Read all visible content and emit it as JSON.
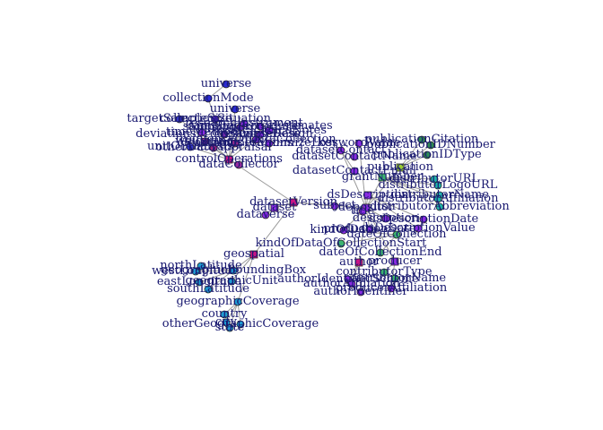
{
  "colors": {
    "label": "#191970",
    "edge": "#9a9a9a",
    "geo_cluster": "#1f9bd1",
    "collection_cluster": "#2b2bd6",
    "meta_cluster": "#8a2be2",
    "citation_cluster": "#2e8b57",
    "hub": "#c71585",
    "teal": "#20b2aa",
    "green": "#3cb371",
    "olive": "#9acd32"
  },
  "nodes": [
    {
      "id": "universe_top",
      "label": "universe",
      "color": "#2b2bd6"
    },
    {
      "id": "collectionMode",
      "label": "collectionMode",
      "color": "#2b2bd6"
    },
    {
      "id": "universe_2",
      "label": "universe",
      "color": "#2b2bd6"
    },
    {
      "id": "targetSampleSize",
      "label": "targetSampleSize",
      "color": "#3a3ad0"
    },
    {
      "id": "collectionSituation",
      "label": "collectionSituation",
      "color": "#5a2ad0"
    },
    {
      "id": "samplingProcedure",
      "label": "samplingProcedure",
      "color": "#6b2bc0"
    },
    {
      "id": "deviationsFromSampleDesign",
      "label": "deviationsFromSampleDesign",
      "color": "#7a2bb0"
    },
    {
      "id": "weighting",
      "label": "weighting",
      "color": "#8a2ba0"
    },
    {
      "id": "cleaningOperations",
      "label": "cleaningOperations",
      "color": "#9a2b90"
    },
    {
      "id": "otherDataAppraisal",
      "label": "otherDataAppraisal",
      "color": "#aa2b80"
    },
    {
      "id": "controlOperations",
      "label": "controlOperations",
      "color": "#c71585"
    },
    {
      "id": "dataCollector",
      "label": "dataCollector",
      "color": "#9a2ba0"
    },
    {
      "id": "unitOfAnalysis",
      "label": "unitOfAnalysis",
      "color": "#3a3ad0"
    },
    {
      "id": "frequencyOfDataCollection",
      "label": "frequencyOfDataCollection",
      "color": "#6b2bc0"
    },
    {
      "id": "researchInstrument",
      "label": "researchInstrument",
      "color": "#8a2be2"
    },
    {
      "id": "socialScienceNotes",
      "label": "socialScienceNotes",
      "color": "#8a2be2"
    },
    {
      "id": "samplingErrorEstimates",
      "label": "samplingErrorEstimates",
      "color": "#8a2be2"
    },
    {
      "id": "timeMethod",
      "label": "timeMethod",
      "color": "#8a2be2"
    },
    {
      "id": "actionsToMinimizeLoss",
      "label": "actionsToMinimizeLoss",
      "color": "#8a2be2"
    },
    {
      "id": "responseRate",
      "label": "responseRate",
      "color": "#8a2be2"
    },
    {
      "id": "datasetVersion",
      "label": "datasetVersion",
      "color": "#c71585"
    },
    {
      "id": "dataset",
      "label": "dataset",
      "color": "#8a2be2"
    },
    {
      "id": "dataverse",
      "label": "dataverse",
      "color": "#8a2be2"
    },
    {
      "id": "geospatial",
      "label": "geospatial",
      "color": "#c71585"
    },
    {
      "id": "northLatitude",
      "label": "northLatitude",
      "color": "#1f9bd1"
    },
    {
      "id": "geographicBoundingBox",
      "label": "geographicBoundingBox",
      "color": "#1f9bd1"
    },
    {
      "id": "westLongitude",
      "label": "westLongitude",
      "color": "#1f9bd1"
    },
    {
      "id": "eastLongitude",
      "label": "eastLongitude",
      "color": "#1f9bd1"
    },
    {
      "id": "geographicUnit",
      "label": "geographicUnit",
      "color": "#1f9bd1"
    },
    {
      "id": "southLatitude",
      "label": "southLatitude",
      "color": "#1f9bd1"
    },
    {
      "id": "geographicCoverage",
      "label": "geographicCoverage",
      "color": "#1f9bd1"
    },
    {
      "id": "country",
      "label": "country",
      "color": "#1f9bd1"
    },
    {
      "id": "otherGeographicCoverage",
      "label": "otherGeographicCoverage",
      "color": "#1f9bd1"
    },
    {
      "id": "state",
      "label": "state",
      "color": "#1f9bd1"
    },
    {
      "id": "city",
      "label": "city",
      "color": "#1f9bd1"
    },
    {
      "id": "publicationCitation",
      "label": "publicationCitation",
      "color": "#2e8b57"
    },
    {
      "id": "keywordValue",
      "label": "keywordValue",
      "color": "#8a2be2"
    },
    {
      "id": "publicationIDNumber",
      "label": "publicationIDNumber",
      "color": "#2e8b57"
    },
    {
      "id": "datasetContact",
      "label": "datasetContact",
      "color": "#8a2be2"
    },
    {
      "id": "publicationIDType",
      "label": "publicationIDType",
      "color": "#2e8b57"
    },
    {
      "id": "datasetContactName",
      "label": "datasetContactName",
      "color": "#8a2be2"
    },
    {
      "id": "publication",
      "label": "publication",
      "color": "#9acd32"
    },
    {
      "id": "datasetContactEmail",
      "label": "datasetContactEmail",
      "color": "#8a2be2"
    },
    {
      "id": "grantNumber",
      "label": "grantNumber",
      "color": "#3cb371"
    },
    {
      "id": "distributorURL",
      "label": "distributorURL",
      "color": "#20b2aa"
    },
    {
      "id": "distributorLogoURL",
      "label": "distributorLogoURL",
      "color": "#20b2aa"
    },
    {
      "id": "dsDescription",
      "label": "dsDescription",
      "color": "#8a2be2"
    },
    {
      "id": "distributorName",
      "label": "distributorName",
      "color": "#20b2aa"
    },
    {
      "id": "distributorAffiliation",
      "label": "distributorAffiliation",
      "color": "#20b2aa"
    },
    {
      "id": "distributorAbbreviation",
      "label": "distributorAbbreviation",
      "color": "#20b2aa"
    },
    {
      "id": "subject",
      "label": "subject",
      "color": "#8a2be2"
    },
    {
      "id": "depositor",
      "label": "depositor",
      "color": "#8a2be2"
    },
    {
      "id": "title",
      "label": "title",
      "color": "#8a2be2"
    },
    {
      "id": "dsDescriptionDate",
      "label": "dsDescriptionDate",
      "color": "#8a2be2"
    },
    {
      "id": "description",
      "label": "description",
      "color": "#8a2be2"
    },
    {
      "id": "productionDate",
      "label": "productionDate",
      "color": "#8a2be2"
    },
    {
      "id": "dsDescriptionValue",
      "label": "dsDescriptionValue",
      "color": "#8a2be2"
    },
    {
      "id": "kindOfData",
      "label": "kindOfData",
      "color": "#8a2be2"
    },
    {
      "id": "dateOfCollection",
      "label": "dateOfCollection",
      "color": "#3cb371"
    },
    {
      "id": "kindOfDataCollectionStart",
      "label": "kindOfDataOfCollectionStart",
      "color": "#3cb371"
    },
    {
      "id": "dateOfCollectionEnd",
      "label": "dateOfCollectionEnd",
      "color": "#3cb371"
    },
    {
      "id": "author",
      "label": "author",
      "color": "#c71585"
    },
    {
      "id": "producer",
      "label": "producer",
      "color": "#8a2be2"
    },
    {
      "id": "contributorType",
      "label": "contributorType",
      "color": "#3cb371"
    },
    {
      "id": "contributorName",
      "label": "contributorName",
      "color": "#3cb371"
    },
    {
      "id": "authorIdentifierScheme",
      "label": "authorIdentifierScheme",
      "color": "#8a2be2"
    },
    {
      "id": "authorAffiliation",
      "label": "authorAffiliation",
      "color": "#8a2be2"
    },
    {
      "id": "producerAffiliation",
      "label": "producerAffiliation",
      "color": "#8a2be2"
    },
    {
      "id": "authorIdentifier",
      "label": "authorIdentifier",
      "color": "#8a2be2"
    }
  ]
}
